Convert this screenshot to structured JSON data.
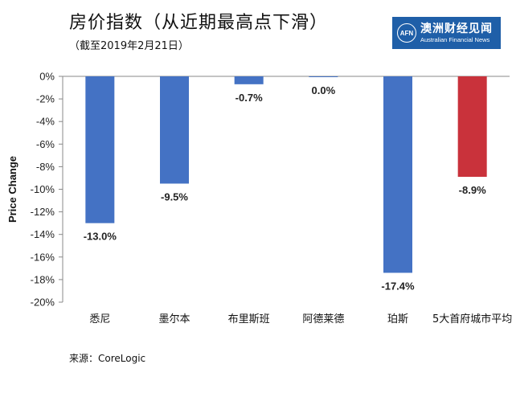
{
  "header": {
    "title": "房价指数（从近期最高点下滑）",
    "subtitle": "（截至2019年2月21日）"
  },
  "logo": {
    "mark": "AFN",
    "name_cn": "澳洲财经见闻",
    "name_en": "Australian Financial News",
    "color": "#1f5fa8"
  },
  "source": "来源：CoreLogic",
  "chart_data": {
    "type": "bar",
    "ylabel": "Price Change",
    "ylim": [
      -20,
      0
    ],
    "ytick_step": 2,
    "ytick_labels": [
      "0%",
      "-2%",
      "-4%",
      "-6%",
      "-8%",
      "-10%",
      "-12%",
      "-14%",
      "-16%",
      "-18%",
      "-20%"
    ],
    "grid": false,
    "categories": [
      "悉尼",
      "墨尔本",
      "布里斯班",
      "阿德莱德",
      "珀斯",
      "5大首府城市平均"
    ],
    "values": [
      -13.0,
      -9.5,
      -0.7,
      -0.05,
      -17.4,
      -8.9
    ],
    "data_labels": [
      "-13.0%",
      "-9.5%",
      "-0.7%",
      "0.0%",
      "-17.4%",
      "-8.9%"
    ],
    "colors": [
      "#4472c4",
      "#4472c4",
      "#4472c4",
      "#4472c4",
      "#4472c4",
      "#c9323b"
    ]
  }
}
